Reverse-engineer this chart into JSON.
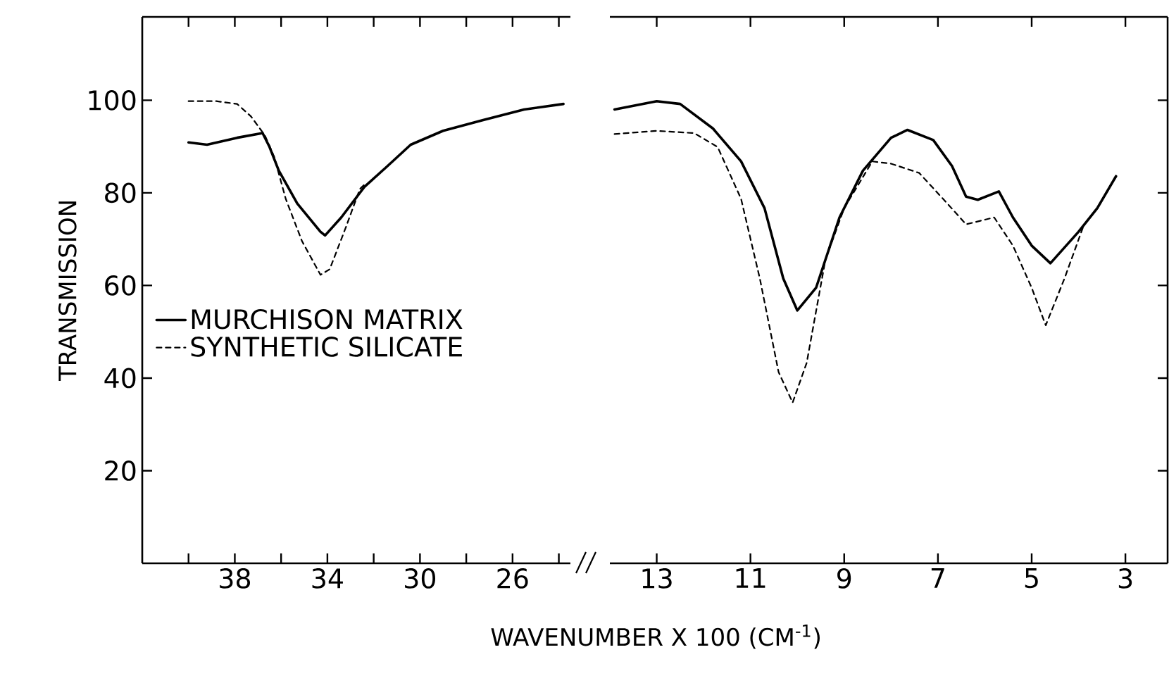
{
  "chart_data": [
    {
      "type": "line",
      "ylabel": "TRANSMISSION",
      "xlabel": "WAVENUMBER X 100 (CM$^{-1}$)",
      "xlim": [
        42,
        23.5
      ],
      "ylim": [
        0,
        118
      ],
      "xticks": [
        {
          "value": 40,
          "label": null
        },
        38,
        {
          "value": 36,
          "label": null
        },
        34,
        {
          "value": 32,
          "label": null
        },
        30,
        {
          "value": 28,
          "label": null
        },
        26,
        {
          "value": 24,
          "label": null
        }
      ],
      "yticks": [
        20,
        40,
        60,
        80,
        100
      ],
      "legend": "left",
      "series": [
        {
          "name": "MURCHISON MATRIX",
          "color": "#000000",
          "line_style": "solid",
          "x": [
            40.0,
            39.2,
            37.9,
            36.8,
            36.5,
            36.1,
            35.3,
            34.3,
            34.1,
            33.4,
            32.4,
            31.4,
            30.4,
            29.0,
            27.3,
            25.5,
            23.8
          ],
          "values": [
            90.9,
            90.4,
            91.9,
            92.9,
            89.9,
            84.8,
            77.7,
            71.6,
            70.8,
            74.7,
            81.3,
            85.8,
            90.4,
            93.4,
            95.7,
            98.0,
            99.2
          ]
        },
        {
          "name": "SYNTHETIC SILICATE",
          "color": "#000000",
          "line_style": "dashed",
          "x": [
            40.0,
            38.8,
            37.9,
            37.3,
            36.7,
            36.3,
            35.8,
            35.1,
            34.3,
            33.9,
            33.2,
            32.6,
            32.3
          ],
          "values": [
            99.8,
            99.8,
            99.2,
            96.5,
            92.4,
            87.8,
            78.7,
            69.6,
            62.3,
            63.5,
            72.6,
            80.8,
            82.3
          ]
        }
      ]
    },
    {
      "type": "line",
      "xlim": [
        14,
        2.1
      ],
      "ylim": [
        0,
        118
      ],
      "xticks": [
        13,
        11,
        9,
        7,
        5,
        3
      ],
      "yticks": [
        20,
        40,
        60,
        80,
        100
      ],
      "tick_labels": "x",
      "series": [
        {
          "color": "#000000",
          "line_style": "solid",
          "x": [
            13.9,
            13.0,
            12.5,
            11.8,
            11.2,
            10.7,
            10.3,
            10.0,
            9.6,
            9.1,
            8.6,
            8.0,
            7.65,
            7.1,
            6.7,
            6.4,
            6.15,
            5.7,
            5.4,
            5.0,
            4.6,
            4.0,
            3.6,
            3.2
          ],
          "values": [
            98.0,
            99.8,
            99.2,
            93.9,
            86.8,
            76.7,
            61.5,
            54.6,
            59.5,
            74.7,
            84.8,
            91.9,
            93.6,
            91.4,
            85.8,
            79.2,
            78.5,
            80.3,
            74.7,
            68.6,
            64.8,
            71.6,
            76.7,
            83.6
          ]
        },
        {
          "color": "#000000",
          "line_style": "dashed",
          "x": [
            13.9,
            13.0,
            12.2,
            11.7,
            11.2,
            10.8,
            10.4,
            10.1,
            9.8,
            9.4,
            9.0,
            8.4,
            8.0,
            7.4,
            6.8,
            6.4,
            5.8,
            5.4,
            5.0,
            4.7,
            4.3,
            3.9
          ],
          "values": [
            92.7,
            93.4,
            92.9,
            89.9,
            78.7,
            61.5,
            41.3,
            34.7,
            43.3,
            65.6,
            76.7,
            86.8,
            86.3,
            84.3,
            77.7,
            73.2,
            74.7,
            68.6,
            59.5,
            51.4,
            61.5,
            72.7
          ]
        }
      ]
    }
  ]
}
